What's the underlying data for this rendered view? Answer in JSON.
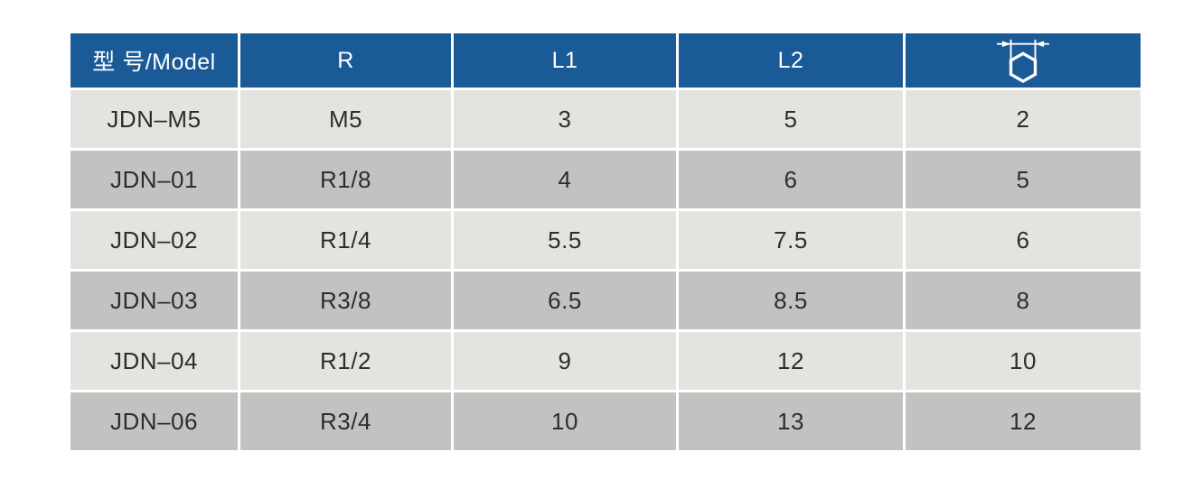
{
  "table": {
    "columns": [
      {
        "key": "model",
        "label": "型 号/Model"
      },
      {
        "key": "r",
        "label": "R"
      },
      {
        "key": "l1",
        "label": "L1"
      },
      {
        "key": "l2",
        "label": "L2"
      },
      {
        "key": "hex",
        "label": "",
        "icon": "hex-width-across-flats-icon"
      }
    ],
    "rows": [
      [
        "JDN–M5",
        "M5",
        "3",
        "5",
        "2"
      ],
      [
        "JDN–01",
        "R1/8",
        "4",
        "6",
        "5"
      ],
      [
        "JDN–02",
        "R1/4",
        "5.5",
        "7.5",
        "6"
      ],
      [
        "JDN–03",
        "R3/8",
        "6.5",
        "8.5",
        "8"
      ],
      [
        "JDN–04",
        "R1/2",
        "9",
        "12",
        "10"
      ],
      [
        "JDN–06",
        "R3/4",
        "10",
        "13",
        "12"
      ]
    ]
  },
  "chart_data": {
    "type": "table",
    "columns": [
      "型 号/Model",
      "R",
      "L1",
      "L2",
      "hex-width-across-flats"
    ],
    "rows": [
      [
        "JDN–M5",
        "M5",
        3,
        5,
        2
      ],
      [
        "JDN–01",
        "R1/8",
        4,
        6,
        5
      ],
      [
        "JDN–02",
        "R1/4",
        5.5,
        7.5,
        6
      ],
      [
        "JDN–03",
        "R3/8",
        6.5,
        8.5,
        8
      ],
      [
        "JDN–04",
        "R1/2",
        9,
        12,
        10
      ],
      [
        "JDN–06",
        "R3/4",
        10,
        13,
        12
      ]
    ]
  },
  "colors": {
    "header_background": "#1a5a97",
    "header_text": "#ffffff",
    "row_light": "#e3e4e0",
    "row_dark": "#c2c3c1",
    "grid_line": "#ffffff",
    "body_text": "#2d2d2d"
  }
}
